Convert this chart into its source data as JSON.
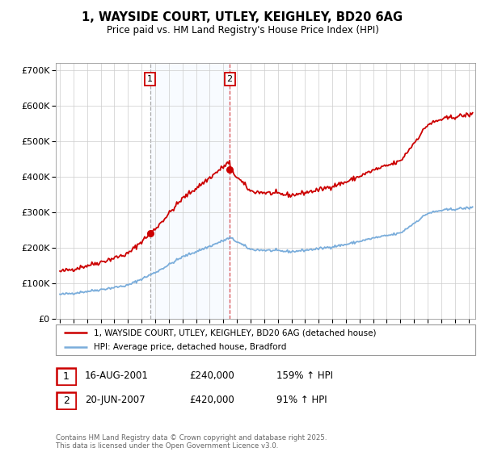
{
  "title": "1, WAYSIDE COURT, UTLEY, KEIGHLEY, BD20 6AG",
  "subtitle": "Price paid vs. HM Land Registry's House Price Index (HPI)",
  "title_fontsize": 10.5,
  "subtitle_fontsize": 8.5,
  "background_color": "#ffffff",
  "plot_bg_color": "#ffffff",
  "grid_color": "#cccccc",
  "red_color": "#cc0000",
  "blue_color": "#7aaddb",
  "shade_color": "#ddeeff",
  "legend_label_red": "1, WAYSIDE COURT, UTLEY, KEIGHLEY, BD20 6AG (detached house)",
  "legend_label_blue": "HPI: Average price, detached house, Bradford",
  "sale1_date": 2001.62,
  "sale1_price": 240000,
  "sale1_label": "1",
  "sale1_hpi_pct": "159% ↑ HPI",
  "sale1_date_str": "16-AUG-2001",
  "sale2_date": 2007.47,
  "sale2_price": 420000,
  "sale2_label": "2",
  "sale2_hpi_pct": "91% ↑ HPI",
  "sale2_date_str": "20-JUN-2007",
  "xlim": [
    1994.7,
    2025.5
  ],
  "ylim": [
    0,
    720000
  ],
  "yticks": [
    0,
    100000,
    200000,
    300000,
    400000,
    500000,
    600000,
    700000
  ],
  "ytick_labels": [
    "£0",
    "£100K",
    "£200K",
    "£300K",
    "£400K",
    "£500K",
    "£600K",
    "£700K"
  ],
  "footer": "Contains HM Land Registry data © Crown copyright and database right 2025.\nThis data is licensed under the Open Government Licence v3.0."
}
